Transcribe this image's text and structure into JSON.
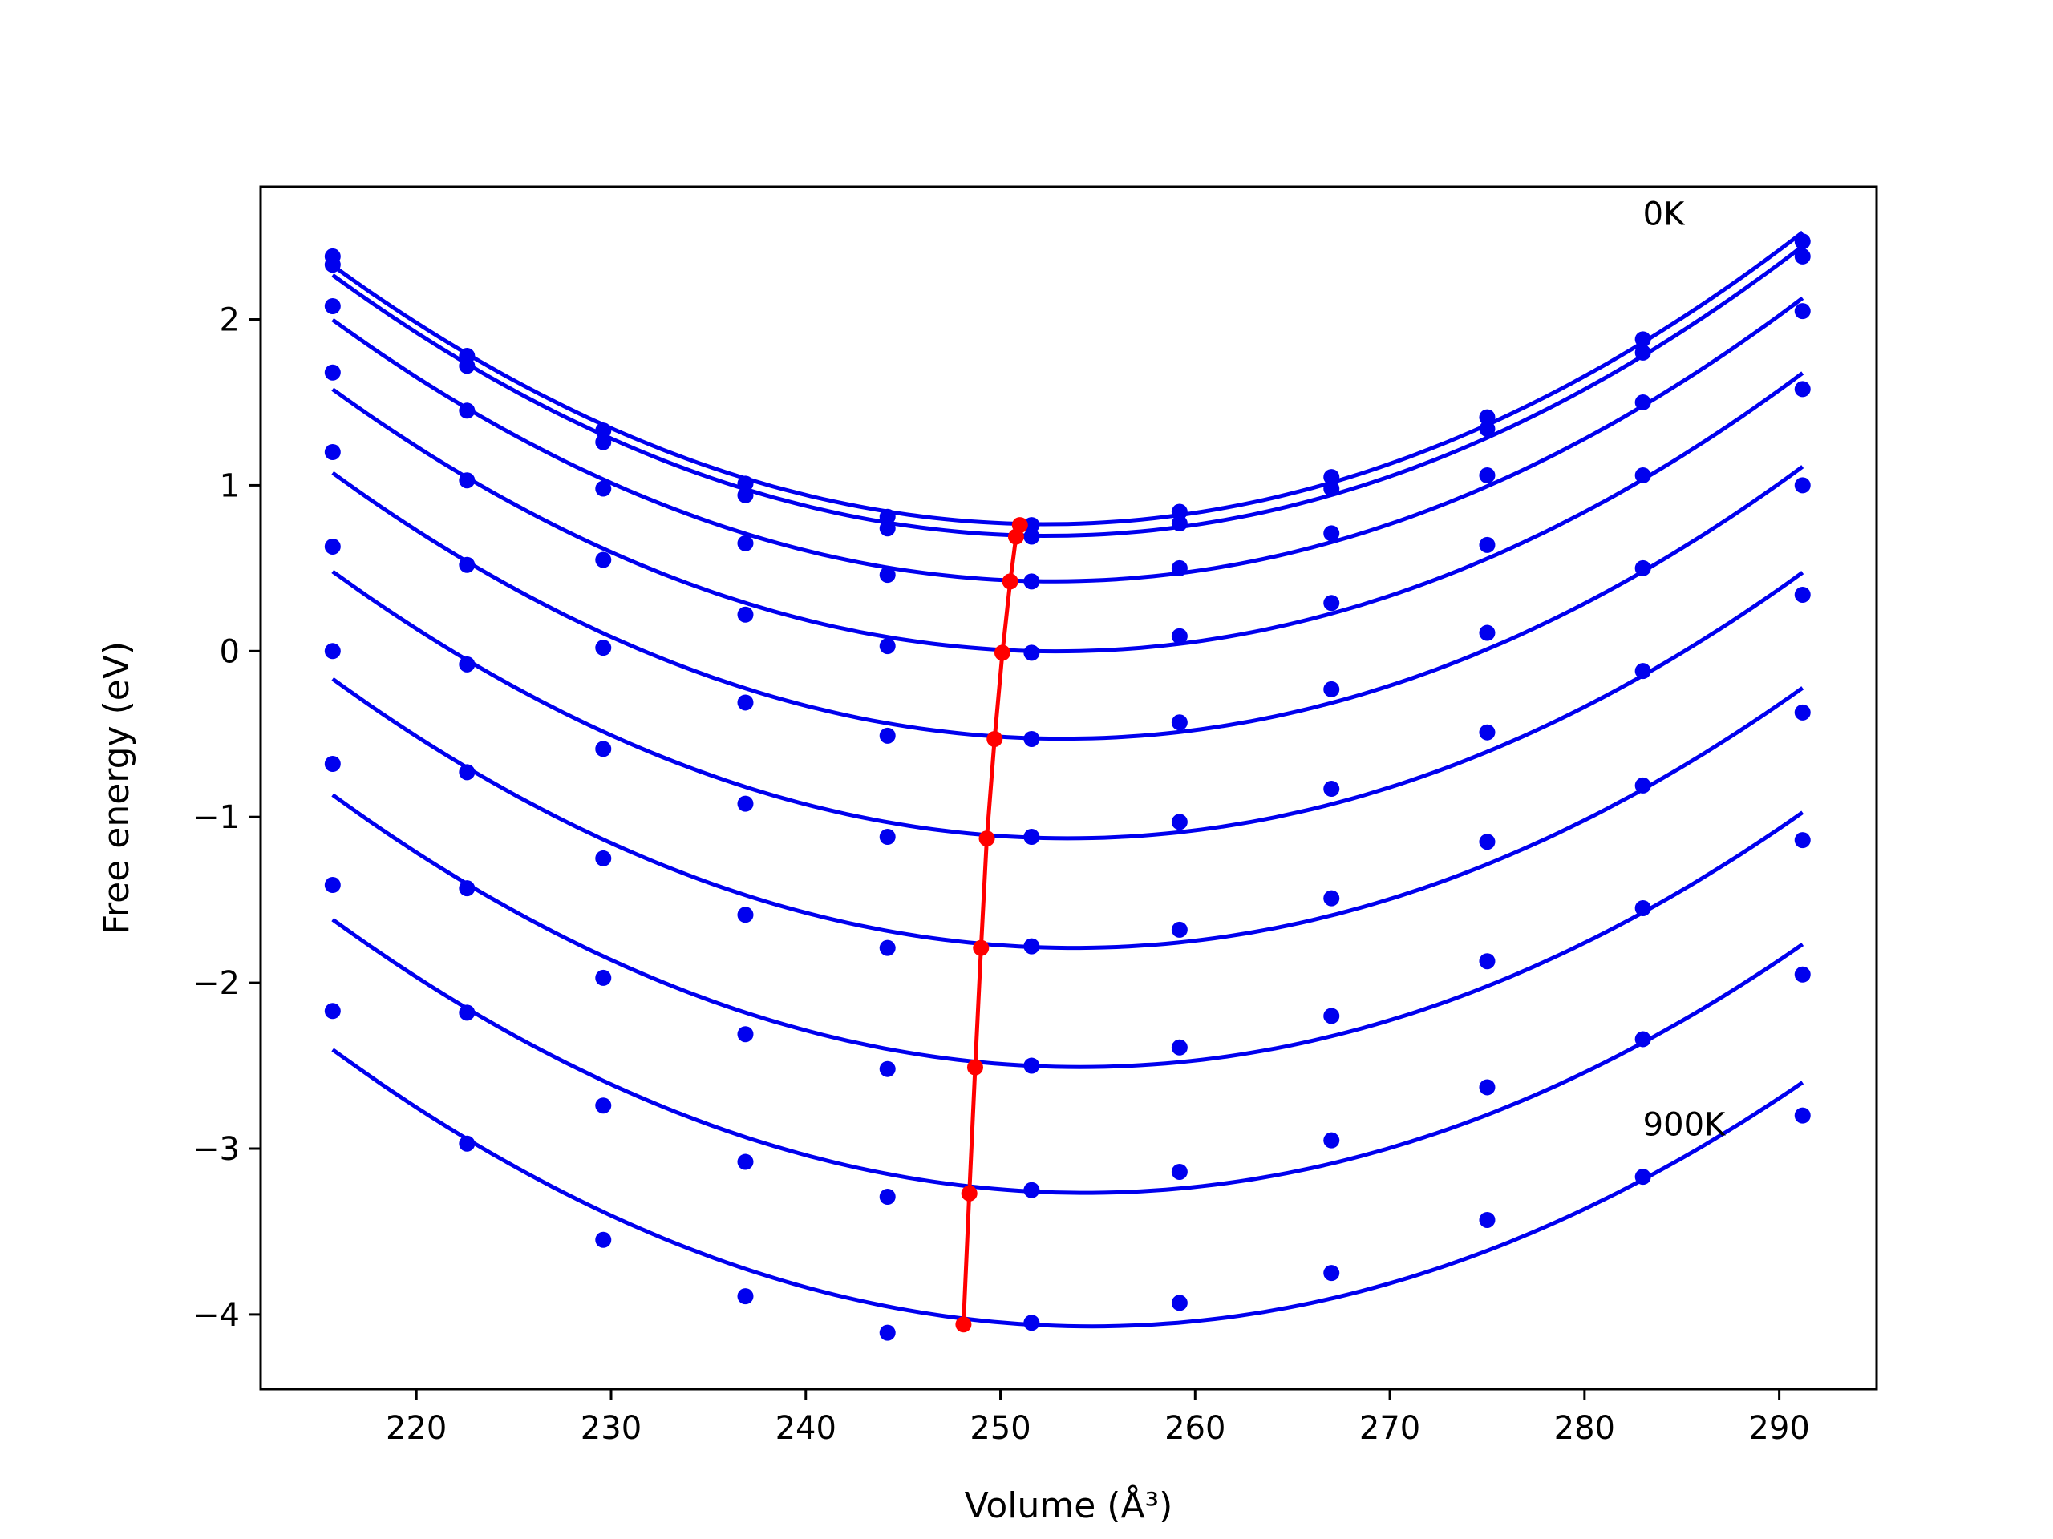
{
  "chart_data": {
    "type": "line",
    "title": "",
    "xlabel": "Volume (Å³)",
    "ylabel": "Free energy (eV)",
    "xlim": [
      212,
      295
    ],
    "ylim": [
      -4.45,
      2.8
    ],
    "xticks": [
      220,
      230,
      240,
      250,
      260,
      270,
      280,
      290
    ],
    "xtick_labels": [
      "220",
      "230",
      "240",
      "250",
      "260",
      "270",
      "280",
      "290"
    ],
    "yticks": [
      -4,
      -3,
      -2,
      -1,
      0,
      1,
      2
    ],
    "ytick_labels": [
      "−4",
      "−3",
      "−2",
      "−1",
      "0",
      "1",
      "2"
    ],
    "grid": false,
    "x": [
      215.7,
      222.6,
      229.6,
      236.9,
      244.2,
      251.6,
      259.2,
      267.0,
      275.0,
      283.0,
      291.2
    ],
    "series": [
      {
        "color": "#0000ee",
        "kind": "markers+fit",
        "values": [
          2.38,
          1.78,
          1.33,
          1.01,
          0.81,
          0.76,
          0.84,
          1.05,
          1.41,
          1.88,
          2.47
        ]
      },
      {
        "color": "#0000ee",
        "kind": "markers+fit",
        "values": [
          2.33,
          1.72,
          1.26,
          0.94,
          0.74,
          0.69,
          0.77,
          0.98,
          1.34,
          1.8,
          2.38
        ]
      },
      {
        "color": "#0000ee",
        "kind": "markers+fit",
        "values": [
          2.08,
          1.45,
          0.98,
          0.65,
          0.46,
          0.42,
          0.5,
          0.71,
          1.06,
          1.5,
          2.05
        ]
      },
      {
        "color": "#0000ee",
        "kind": "markers+fit",
        "values": [
          1.68,
          1.03,
          0.55,
          0.22,
          0.03,
          -0.01,
          0.09,
          0.29,
          0.64,
          1.06,
          1.58
        ]
      },
      {
        "color": "#0000ee",
        "kind": "markers+fit",
        "values": [
          1.2,
          0.52,
          0.02,
          -0.31,
          -0.51,
          -0.53,
          -0.43,
          -0.23,
          0.11,
          0.5,
          1.0
        ]
      },
      {
        "color": "#0000ee",
        "kind": "markers+fit",
        "values": [
          0.63,
          -0.08,
          -0.59,
          -0.92,
          -1.12,
          -1.12,
          -1.03,
          -0.83,
          -0.49,
          -0.12,
          0.34
        ]
      },
      {
        "color": "#0000ee",
        "kind": "markers+fit",
        "values": [
          0.0,
          -0.73,
          -1.25,
          -1.59,
          -1.79,
          -1.78,
          -1.68,
          -1.49,
          -1.15,
          -0.81,
          -0.37
        ]
      },
      {
        "color": "#0000ee",
        "kind": "markers+fit",
        "values": [
          -0.68,
          -1.43,
          -1.97,
          -2.31,
          -2.52,
          -2.5,
          -2.39,
          -2.2,
          -1.87,
          -1.55,
          -1.14
        ]
      },
      {
        "color": "#0000ee",
        "kind": "markers+fit",
        "values": [
          -1.41,
          -2.18,
          -2.74,
          -3.08,
          -3.29,
          -3.25,
          -3.14,
          -2.95,
          -2.63,
          -2.34,
          -1.95
        ]
      },
      {
        "color": "#0000ee",
        "kind": "markers+fit",
        "values": [
          -2.17,
          -2.97,
          -3.55,
          -3.89,
          -4.11,
          -4.05,
          -3.93,
          -3.75,
          -3.43,
          -3.17,
          -2.8
        ]
      }
    ],
    "minima": {
      "color": "#ff0000",
      "x": [
        251.0,
        250.8,
        250.5,
        250.1,
        249.7,
        249.3,
        249.0,
        248.7,
        248.4,
        248.1
      ],
      "y": [
        0.76,
        0.69,
        0.42,
        -0.01,
        -0.53,
        -1.13,
        -1.79,
        -2.51,
        -3.27,
        -4.06
      ]
    },
    "annotations": [
      {
        "text": "0K",
        "x": 283.0,
        "y": 2.57
      },
      {
        "text": "900K",
        "x": 283.0,
        "y": -2.92
      }
    ]
  }
}
